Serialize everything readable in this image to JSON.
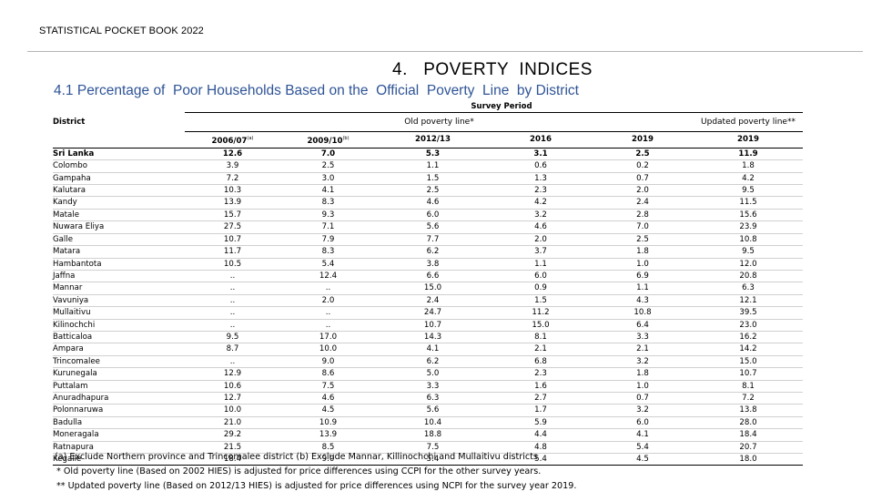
{
  "header": {
    "text": "STATISTICAL POCKET BOOK 2022"
  },
  "section_title": "4.   POVERTY  INDICES",
  "table_title": "4.1 Percentage of  Poor Households Based on the  Official  Poverty  Line  by District",
  "table": {
    "survey_period_label": "Survey Period",
    "district_label": "District",
    "old_line_label": "Old poverty line*",
    "updated_line_label": "Updated poverty line**",
    "years": [
      {
        "year": "2006/07",
        "note": "(a)"
      },
      {
        "year": "2009/10",
        "note": "(b)"
      },
      {
        "year": "2012/13",
        "note": ""
      },
      {
        "year": "2016",
        "note": ""
      },
      {
        "year": "2019",
        "note": ""
      },
      {
        "year": "2019",
        "note": ""
      }
    ],
    "rows": [
      {
        "district": "Sri Lanka",
        "values": [
          "12.6",
          "7.0",
          "5.3",
          "3.1",
          "2.5",
          "11.9"
        ]
      },
      {
        "district": "Colombo",
        "values": [
          "3.9",
          "2.5",
          "1.1",
          "0.6",
          "0.2",
          "1.8"
        ]
      },
      {
        "district": "Gampaha",
        "values": [
          "7.2",
          "3.0",
          "1.5",
          "1.3",
          "0.7",
          "4.2"
        ]
      },
      {
        "district": "Kalutara",
        "values": [
          "10.3",
          "4.1",
          "2.5",
          "2.3",
          "2.0",
          "9.5"
        ]
      },
      {
        "district": "Kandy",
        "values": [
          "13.9",
          "8.3",
          "4.6",
          "4.2",
          "2.4",
          "11.5"
        ]
      },
      {
        "district": "Matale",
        "values": [
          "15.7",
          "9.3",
          "6.0",
          "3.2",
          "2.8",
          "15.6"
        ]
      },
      {
        "district": "Nuwara Eliya",
        "values": [
          "27.5",
          "7.1",
          "5.6",
          "4.6",
          "7.0",
          "23.9"
        ]
      },
      {
        "district": "Galle",
        "values": [
          "10.7",
          "7.9",
          "7.7",
          "2.0",
          "2.5",
          "10.8"
        ]
      },
      {
        "district": "Matara",
        "values": [
          "11.7",
          "8.3",
          "6.2",
          "3.7",
          "1.8",
          "9.5"
        ]
      },
      {
        "district": "Hambantota",
        "values": [
          "10.5",
          "5.4",
          "3.8",
          "1.1",
          "1.0",
          "12.0"
        ]
      },
      {
        "district": "Jaffna",
        "values": [
          "..",
          "12.4",
          "6.6",
          "6.0",
          "6.9",
          "20.8"
        ]
      },
      {
        "district": "Mannar",
        "values": [
          "..",
          "..",
          "15.0",
          "0.9",
          "1.1",
          "6.3"
        ]
      },
      {
        "district": "Vavuniya",
        "values": [
          "..",
          "2.0",
          "2.4",
          "1.5",
          "4.3",
          "12.1"
        ]
      },
      {
        "district": "Mullaitivu",
        "values": [
          "..",
          "..",
          "24.7",
          "11.2",
          "10.8",
          "39.5"
        ]
      },
      {
        "district": "Kilinochchi",
        "values": [
          "..",
          "..",
          "10.7",
          "15.0",
          "6.4",
          "23.0"
        ]
      },
      {
        "district": "Batticaloa",
        "values": [
          "9.5",
          "17.0",
          "14.3",
          "8.1",
          "3.3",
          "16.2"
        ]
      },
      {
        "district": "Ampara",
        "values": [
          "8.7",
          "10.0",
          "4.1",
          "2.1",
          "2.1",
          "14.2"
        ]
      },
      {
        "district": "Trincomalee",
        "values": [
          "..",
          "9.0",
          "6.2",
          "6.8",
          "3.2",
          "15.0"
        ]
      },
      {
        "district": "Kurunegala",
        "values": [
          "12.9",
          "8.6",
          "5.0",
          "2.3",
          "1.8",
          "10.7"
        ]
      },
      {
        "district": "Puttalam",
        "values": [
          "10.6",
          "7.5",
          "3.3",
          "1.6",
          "1.0",
          "8.1"
        ]
      },
      {
        "district": "Anuradhapura",
        "values": [
          "12.7",
          "4.6",
          "6.3",
          "2.7",
          "0.7",
          "7.2"
        ]
      },
      {
        "district": "Polonnaruwa",
        "values": [
          "10.0",
          "4.5",
          "5.6",
          "1.7",
          "3.2",
          "13.8"
        ]
      },
      {
        "district": "Badulla",
        "values": [
          "21.0",
          "10.9",
          "10.4",
          "5.9",
          "6.0",
          "28.0"
        ]
      },
      {
        "district": "Moneragala",
        "values": [
          "29.2",
          "13.9",
          "18.8",
          "4.4",
          "4.1",
          "18.4"
        ]
      },
      {
        "district": "Ratnapura",
        "values": [
          "21.5",
          "8.5",
          "7.5",
          "4.8",
          "5.4",
          "20.7"
        ]
      },
      {
        "district": "Kegalle",
        "values": [
          "18.4",
          "9.0",
          "5.4",
          "5.4",
          "4.5",
          "18.0"
        ]
      }
    ]
  },
  "notes": [
    "(a) Exclude Northern province and Trincomalee district (b) Exclude Mannar, Killinochchi and Mullaitivu districts",
    "* Old poverty line (Based on 2002 HIES) is adjusted for price differences using CCPI for the other survey years.",
    "** Updated poverty line (Based on 2012/13 HIES) is adjusted for price differences using NCPI for the survey year 2019."
  ]
}
